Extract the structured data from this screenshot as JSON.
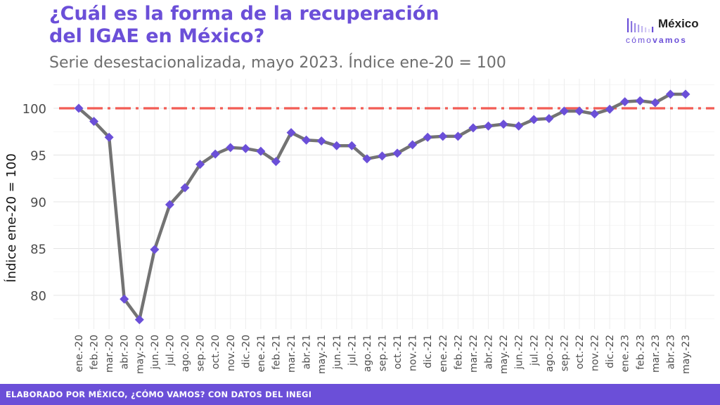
{
  "header": {
    "title_line1": "¿Cuál es la forma de la recuperación",
    "title_line2": "del IGAE en México?",
    "subtitle": "Serie desestacionalizada, mayo 2023. Índice ene-20 = 100"
  },
  "logo": {
    "word1": "México",
    "word2_light": "cómo",
    "word2_bold": "vamos"
  },
  "footer": {
    "text": "ELABORADO POR MÉXICO, ¿CÓMO VAMOS? CON DATOS DEL INEGI"
  },
  "colors": {
    "accent": "#6b4fd8",
    "line": "#737373",
    "marker": "#6b4fd8",
    "reference_line": "#f25c54"
  },
  "chart_data": {
    "type": "line",
    "title": "¿Cuál es la forma de la recuperación del IGAE en México?",
    "subtitle": "Serie desestacionalizada, mayo 2023. Índice ene-20 = 100",
    "xlabel": "",
    "ylabel": "Índice ene-20 = 100",
    "ylim": [
      76.5,
      102.8
    ],
    "yticks": [
      80,
      85,
      90,
      95,
      100
    ],
    "grid": true,
    "reference_line": {
      "y": 100,
      "style": "dash-dot"
    },
    "categories": [
      "ene.-20",
      "feb.-20",
      "mar.-20",
      "abr.-20",
      "may.-20",
      "jun.-20",
      "jul.-20",
      "ago.-20",
      "sep.-20",
      "oct.-20",
      "nov.-20",
      "dic.-20",
      "ene.-21",
      "feb.-21",
      "mar.-21",
      "abr.-21",
      "may.-21",
      "jun.-21",
      "jul.-21",
      "ago.-21",
      "sep.-21",
      "oct.-21",
      "nov.-21",
      "dic.-21",
      "ene.-22",
      "feb.-22",
      "mar.-22",
      "abr.-22",
      "may.-22",
      "jun.-22",
      "jul.-22",
      "ago.-22",
      "sep.-22",
      "oct.-22",
      "nov.-22",
      "dic.-22",
      "ene.-23",
      "feb.-23",
      "mar.-23",
      "abr.-23",
      "may.-23"
    ],
    "tick_labels": [
      "ene.-20",
      "feb.-20",
      "mar.-20",
      "abr.-20",
      "may.-20",
      "jun.-20",
      "jul.-20",
      "ago.-20",
      "sep.-20",
      "oct.-20",
      "nov.-20",
      "dic.-20",
      "ene.-21",
      "feb.-21",
      "mar.-21",
      "abr.-21",
      "may.-21",
      "jun.-21",
      "jul.-21",
      "ago.-21",
      "sep.-21",
      "oct.-21",
      "nov.-21",
      "dic.-21",
      "ene.-22",
      "feb.-22",
      "mar.-22",
      "abr.-22",
      "may.-22",
      "jun.-22",
      "jul.-22",
      "ago.-22",
      "sep.-22",
      "oct.-22",
      "nov.-22",
      "dic.-22",
      "ene.-23",
      "feb.-23",
      "mar.-23",
      "abr.-23",
      "may.-23"
    ],
    "series": [
      {
        "values": [
          100.0,
          98.6,
          96.9,
          79.6,
          77.4,
          84.9,
          89.7,
          91.5,
          94.0,
          95.1,
          95.8,
          95.7,
          95.4,
          94.3,
          97.4,
          96.6,
          96.5,
          96.0,
          96.0,
          94.6,
          94.9,
          95.2,
          96.1,
          96.9,
          97.0,
          97.0,
          97.9,
          98.1,
          98.3,
          98.1,
          98.8,
          98.9,
          99.7,
          99.7,
          99.4,
          99.9,
          100.7,
          100.8,
          100.6,
          101.5,
          101.5
        ]
      }
    ]
  }
}
